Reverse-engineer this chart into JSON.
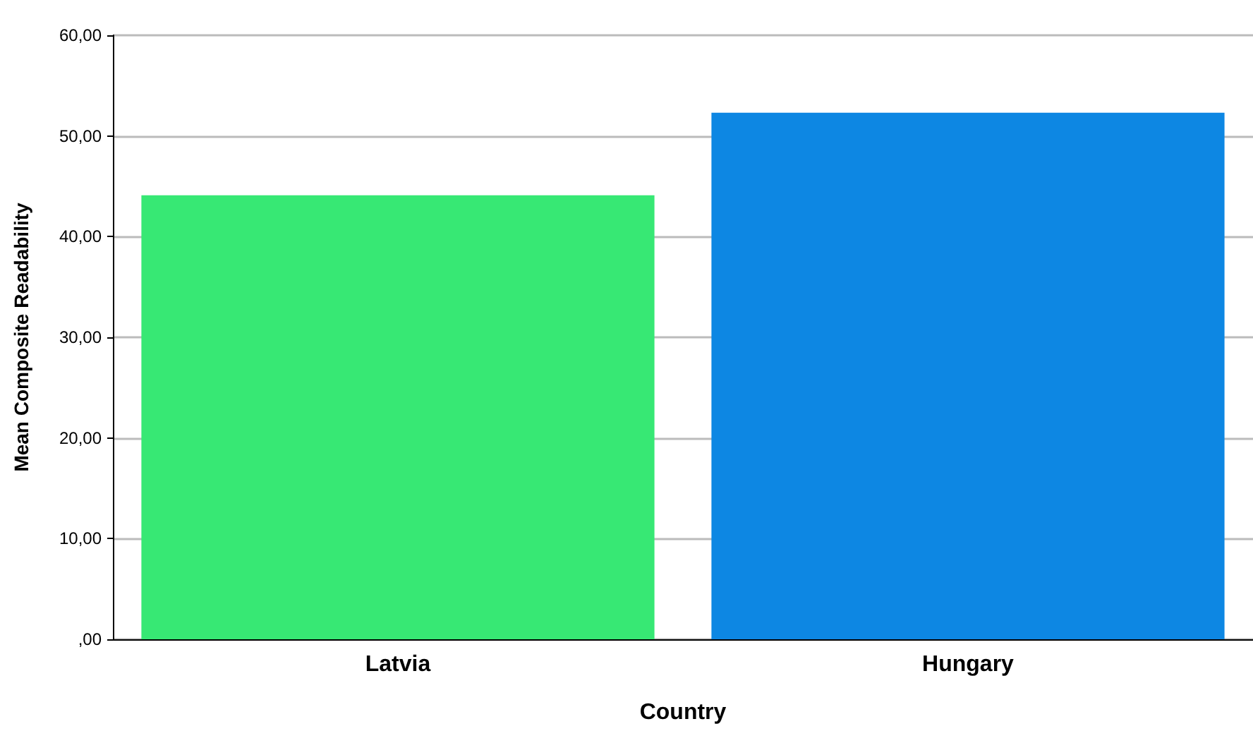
{
  "chart_data": {
    "type": "bar",
    "xlabel": "Country",
    "ylabel": "Mean Composite Readability",
    "categories": [
      "Latvia",
      "Hungary"
    ],
    "values": [
      44.1,
      52.3
    ],
    "colors": [
      "#37e874",
      "#0d87e3"
    ],
    "ylim": [
      0,
      60
    ],
    "yticks": [
      {
        "value": 0,
        "label": ",00"
      },
      {
        "value": 10,
        "label": "10,00"
      },
      {
        "value": 20,
        "label": "20,00"
      },
      {
        "value": 30,
        "label": "30,00"
      },
      {
        "value": 40,
        "label": "40,00"
      },
      {
        "value": 50,
        "label": "50,00"
      },
      {
        "value": 60,
        "label": "60,00"
      }
    ],
    "grid": "y"
  }
}
